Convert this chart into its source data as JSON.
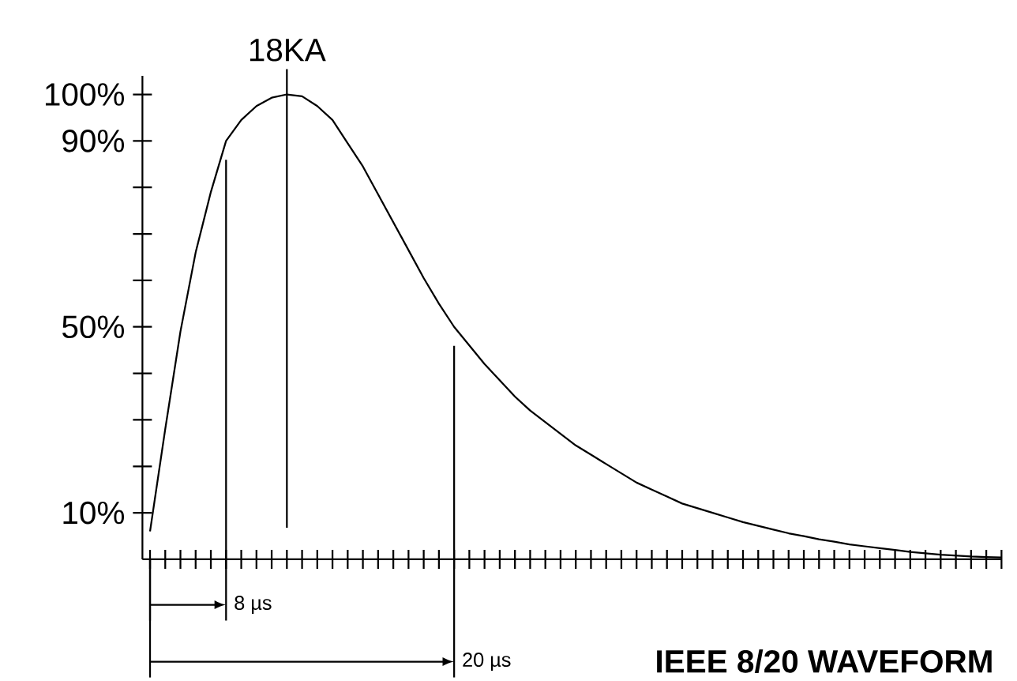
{
  "chart_data": {
    "type": "line",
    "title": "IEEE 8/20 WAVEFORM",
    "categories": [
      null,
      null,
      null,
      null,
      null,
      null,
      null,
      null,
      null,
      null,
      null,
      null,
      null,
      null,
      null,
      null,
      null,
      null,
      null,
      null,
      null,
      null,
      null,
      null,
      null,
      null,
      null,
      null,
      null,
      null,
      null,
      null,
      null,
      null,
      null,
      null,
      null,
      null,
      null,
      null,
      null,
      null,
      null,
      null,
      null,
      null,
      null,
      null,
      null,
      null,
      null,
      null,
      null,
      null,
      null,
      null,
      null
    ],
    "values": [
      6,
      28,
      49,
      66,
      79,
      90,
      94.5,
      97.5,
      99.3,
      100,
      99.6,
      97.5,
      94.5,
      89.5,
      84.5,
      78.5,
      72.5,
      66.5,
      60.5,
      55,
      50,
      46,
      42,
      38.5,
      35,
      32,
      29.5,
      27,
      24.5,
      22.5,
      20.5,
      18.5,
      16.5,
      15,
      13.5,
      12,
      11,
      10,
      9,
      8,
      7.2,
      6.4,
      5.6,
      5,
      4.3,
      3.8,
      3.2,
      2.8,
      2.4,
      2,
      1.6,
      1.3,
      1,
      0.8,
      0.6,
      0.5,
      0.4
    ],
    "color": "#000000",
    "line_style": "solid",
    "ylim": [
      0,
      104
    ],
    "yticks": [
      {
        "value": 10,
        "label": "10%"
      },
      {
        "value": 20,
        "label": null
      },
      {
        "value": 30,
        "label": null
      },
      {
        "value": 40,
        "label": null
      },
      {
        "value": 50,
        "label": "50%"
      },
      {
        "value": 60,
        "label": null
      },
      {
        "value": 70,
        "label": null
      },
      {
        "value": 80,
        "label": null
      },
      {
        "value": 90,
        "label": "90%"
      },
      {
        "value": 100,
        "label": "100%"
      }
    ],
    "annotations": [
      {
        "text": "18KA",
        "y": 100
      },
      "8 µs",
      "20 µs"
    ]
  }
}
